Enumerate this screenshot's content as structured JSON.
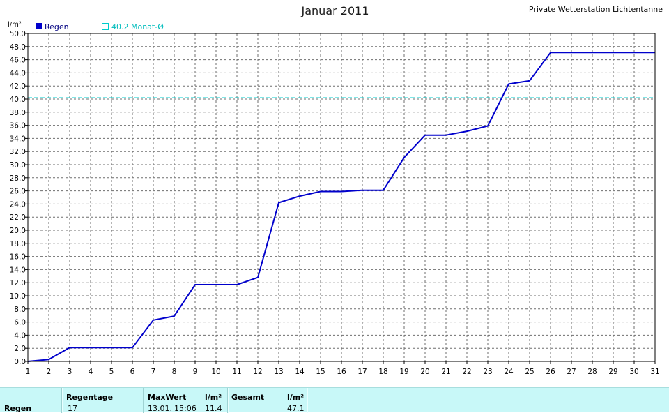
{
  "chart_data": {
    "type": "line",
    "title": "Januar 2011",
    "station": "Private Wetterstation Lichtentanne",
    "ylabel": "l/m²",
    "xlabel": "",
    "ylim": [
      0,
      50
    ],
    "xlim": [
      1,
      31
    ],
    "grid": true,
    "legend_position": "top-left",
    "x": [
      1,
      2,
      3,
      4,
      5,
      6,
      7,
      8,
      9,
      10,
      11,
      12,
      13,
      14,
      15,
      16,
      17,
      18,
      19,
      20,
      21,
      22,
      23,
      24,
      25,
      26,
      27,
      28,
      29,
      30,
      31
    ],
    "x_ticks": [
      "1",
      "2",
      "3",
      "4",
      "5",
      "6",
      "7",
      "8",
      "9",
      "10",
      "11",
      "12",
      "13",
      "14",
      "15",
      "16",
      "17",
      "18",
      "19",
      "20",
      "21",
      "22",
      "23",
      "24",
      "25",
      "26",
      "27",
      "28",
      "29",
      "30",
      "31"
    ],
    "y_ticks": [
      "0.0",
      "2.0",
      "4.0",
      "6.0",
      "8.0",
      "10.0",
      "12.0",
      "14.0",
      "16.0",
      "18.0",
      "20.0",
      "22.0",
      "24.0",
      "26.0",
      "28.0",
      "30.0",
      "32.0",
      "34.0",
      "36.0",
      "38.0",
      "40.0",
      "42.0",
      "44.0",
      "46.0",
      "48.0",
      "50.0"
    ],
    "series": [
      {
        "name": "Regen",
        "color": "#0000cc",
        "values": [
          0.0,
          0.3,
          2.1,
          2.1,
          2.1,
          2.1,
          6.3,
          6.9,
          11.7,
          11.7,
          11.7,
          12.8,
          24.2,
          25.2,
          25.9,
          25.9,
          26.1,
          26.1,
          31.1,
          34.5,
          34.5,
          35.1,
          35.9,
          42.3,
          42.8,
          47.1,
          47.1,
          47.1,
          47.1,
          47.1,
          47.1
        ]
      }
    ],
    "reference_line": {
      "name": "40.2 Monat-Ø",
      "value": 40.2,
      "color": "#00cccc"
    }
  },
  "stats": {
    "row_label": "Regen",
    "regentage_label": "Regentage",
    "regentage_value": "17",
    "maxwert_label": "MaxWert",
    "maxwert_unit": "l/m²",
    "maxwert_date": "13.01.",
    "maxwert_time": "15:06",
    "maxwert_value": "11.4",
    "gesamt_label": "Gesamt",
    "gesamt_unit": "l/m²",
    "gesamt_value": "47.1"
  }
}
